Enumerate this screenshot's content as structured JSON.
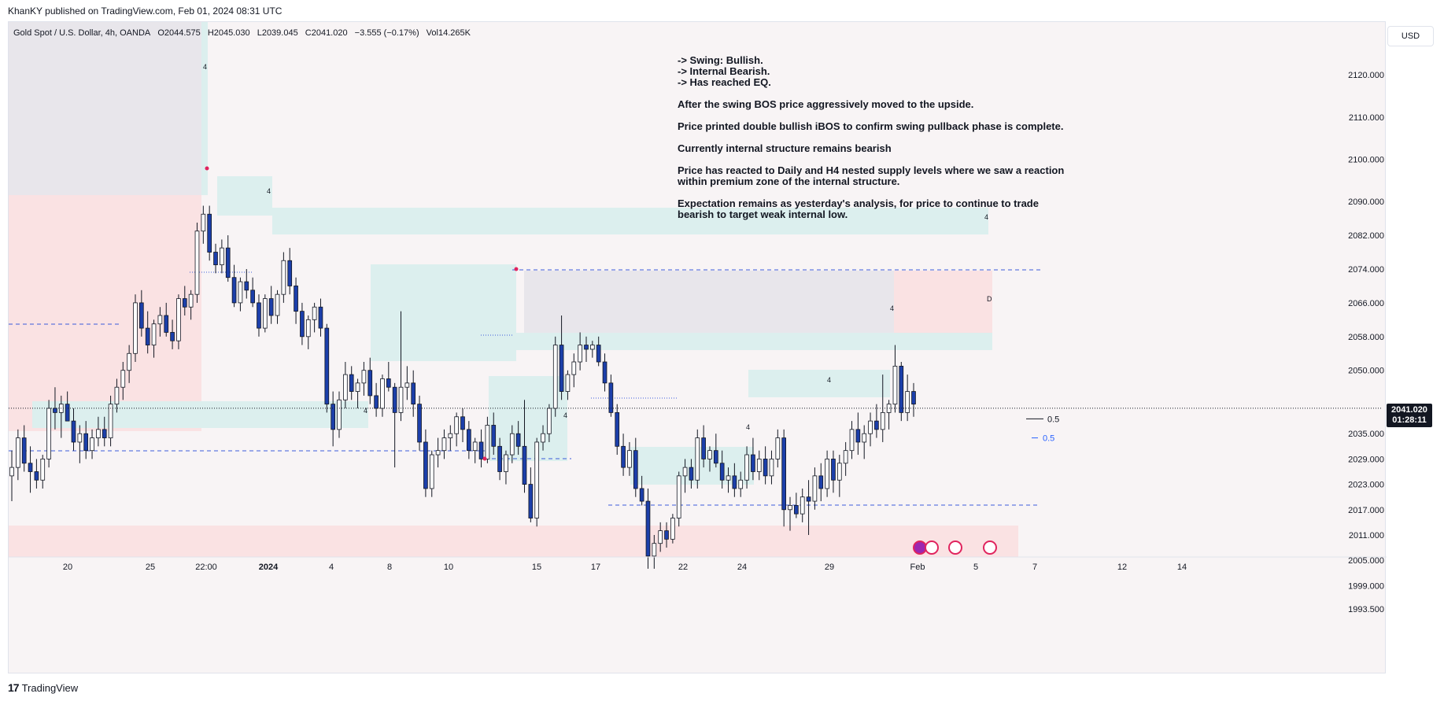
{
  "header": {
    "published": "KhanKY published on TradingView.com, Feb 01, 2024 08:31 UTC"
  },
  "symbol": {
    "name": "Gold Spot / U.S. Dollar, 4h, OANDA",
    "open": "O2044.575",
    "high": "H2045.030",
    "low": "L2039.045",
    "close": "C2041.020",
    "change": "−3.555 (−0.17%)",
    "volume": "Vol14.265K"
  },
  "currency_button": "USD",
  "notes": {
    "bullets": [
      "-> Swing: Bullish.",
      "-> Internal Bearish.",
      "-> Has reached EQ."
    ],
    "paragraphs": [
      "After the swing BOS price aggressively moved to the upside.",
      "Price printed double bullish iBOS to confirm swing pullback phase is complete.",
      "Currently internal structure remains bearish",
      "Price has reacted to Daily and H4 nested supply levels where we saw a reaction\nwithin premium zone of the internal structure.",
      "Expectation remains as yesterday's analysis, for price to continue to trade\nbearish to target weak internal low."
    ]
  },
  "price_badge": {
    "price": "2041.020",
    "countdown": "01:28:11"
  },
  "footer": {
    "brand": "TradingView",
    "mark": "17"
  },
  "colors": {
    "bull": "#ffffff",
    "bear": "#1c3faa",
    "wick": "#131722",
    "demand_zone": "#dcefee",
    "supply_zone": "#fae2e3",
    "gray_zone": "#e8e6eb",
    "dashed_line": "#3b5bdb",
    "accent_blue": "#2962ff",
    "pivot_red": "#e0245e"
  },
  "chart_data": {
    "type": "candlestick",
    "symbol": "XAUUSD",
    "timeframe": "4h",
    "ylim": [
      1989,
      2126
    ],
    "y_ticks": [
      "2120.000",
      "2110.000",
      "2100.000",
      "2090.000",
      "2082.000",
      "2074.000",
      "2066.000",
      "2058.000",
      "2050.000",
      "2035.000",
      "2029.000",
      "2023.000",
      "2017.000",
      "2011.000",
      "2005.000",
      "1999.000",
      "1993.500"
    ],
    "x_ticks": [
      "20",
      "25",
      "22:00",
      "2024",
      "4",
      "8",
      "10",
      "15",
      "17",
      "22",
      "24",
      "29",
      "Feb",
      "5",
      "7",
      "12",
      "14"
    ],
    "last_price": 2041.02,
    "last_price_label": "2041.020",
    "countdown": "01:28:11",
    "equilibrium_levels": [
      {
        "label": "0.5",
        "price": 2038.5
      },
      {
        "label": "0.5",
        "price": 2034
      }
    ],
    "zone_labels": [
      "4",
      "4",
      "4",
      "4",
      "4",
      "4",
      "4",
      "4",
      "D"
    ],
    "candles": [
      {
        "o": 2025,
        "h": 2031,
        "l": 2019,
        "c": 2027
      },
      {
        "o": 2027,
        "h": 2036,
        "l": 2024,
        "c": 2034
      },
      {
        "o": 2034,
        "h": 2037,
        "l": 2026,
        "c": 2028
      },
      {
        "o": 2028,
        "h": 2032,
        "l": 2021,
        "c": 2026
      },
      {
        "o": 2026,
        "h": 2029,
        "l": 2022,
        "c": 2024
      },
      {
        "o": 2024,
        "h": 2030,
        "l": 2022,
        "c": 2029
      },
      {
        "o": 2029,
        "h": 2043,
        "l": 2027,
        "c": 2041
      },
      {
        "o": 2041,
        "h": 2046,
        "l": 2036,
        "c": 2040
      },
      {
        "o": 2040,
        "h": 2044,
        "l": 2034,
        "c": 2042
      },
      {
        "o": 2042,
        "h": 2045,
        "l": 2038,
        "c": 2038
      },
      {
        "o": 2038,
        "h": 2041,
        "l": 2031,
        "c": 2033
      },
      {
        "o": 2033,
        "h": 2037,
        "l": 2028,
        "c": 2035
      },
      {
        "o": 2035,
        "h": 2038,
        "l": 2029,
        "c": 2031
      },
      {
        "o": 2031,
        "h": 2036,
        "l": 2029,
        "c": 2034
      },
      {
        "o": 2034,
        "h": 2039,
        "l": 2032,
        "c": 2036
      },
      {
        "o": 2036,
        "h": 2039,
        "l": 2032,
        "c": 2034
      },
      {
        "o": 2034,
        "h": 2044,
        "l": 2032,
        "c": 2042
      },
      {
        "o": 2042,
        "h": 2048,
        "l": 2040,
        "c": 2046
      },
      {
        "o": 2046,
        "h": 2052,
        "l": 2043,
        "c": 2050
      },
      {
        "o": 2050,
        "h": 2056,
        "l": 2047,
        "c": 2054
      },
      {
        "o": 2054,
        "h": 2068,
        "l": 2052,
        "c": 2066
      },
      {
        "o": 2066,
        "h": 2069,
        "l": 2058,
        "c": 2060
      },
      {
        "o": 2060,
        "h": 2064,
        "l": 2054,
        "c": 2056
      },
      {
        "o": 2056,
        "h": 2062,
        "l": 2053,
        "c": 2061
      },
      {
        "o": 2061,
        "h": 2065,
        "l": 2058,
        "c": 2063
      },
      {
        "o": 2063,
        "h": 2066,
        "l": 2058,
        "c": 2059
      },
      {
        "o": 2059,
        "h": 2062,
        "l": 2055,
        "c": 2057
      },
      {
        "o": 2057,
        "h": 2068,
        "l": 2055,
        "c": 2067
      },
      {
        "o": 2067,
        "h": 2070,
        "l": 2063,
        "c": 2065
      },
      {
        "o": 2065,
        "h": 2069,
        "l": 2062,
        "c": 2068
      },
      {
        "o": 2068,
        "h": 2085,
        "l": 2066,
        "c": 2083
      },
      {
        "o": 2083,
        "h": 2089,
        "l": 2080,
        "c": 2087
      },
      {
        "o": 2087,
        "h": 2089,
        "l": 2076,
        "c": 2078
      },
      {
        "o": 2078,
        "h": 2080,
        "l": 2073,
        "c": 2075
      },
      {
        "o": 2075,
        "h": 2081,
        "l": 2073,
        "c": 2079
      },
      {
        "o": 2079,
        "h": 2082,
        "l": 2071,
        "c": 2072
      },
      {
        "o": 2072,
        "h": 2075,
        "l": 2065,
        "c": 2066
      },
      {
        "o": 2066,
        "h": 2072,
        "l": 2064,
        "c": 2071
      },
      {
        "o": 2071,
        "h": 2074,
        "l": 2067,
        "c": 2069
      },
      {
        "o": 2069,
        "h": 2072,
        "l": 2065,
        "c": 2066
      },
      {
        "o": 2066,
        "h": 2068,
        "l": 2058,
        "c": 2060
      },
      {
        "o": 2060,
        "h": 2068,
        "l": 2059,
        "c": 2067
      },
      {
        "o": 2067,
        "h": 2070,
        "l": 2061,
        "c": 2063
      },
      {
        "o": 2063,
        "h": 2069,
        "l": 2061,
        "c": 2068
      },
      {
        "o": 2068,
        "h": 2078,
        "l": 2066,
        "c": 2076
      },
      {
        "o": 2076,
        "h": 2079,
        "l": 2068,
        "c": 2070
      },
      {
        "o": 2070,
        "h": 2072,
        "l": 2061,
        "c": 2064
      },
      {
        "o": 2064,
        "h": 2066,
        "l": 2056,
        "c": 2058
      },
      {
        "o": 2058,
        "h": 2063,
        "l": 2055,
        "c": 2062
      },
      {
        "o": 2062,
        "h": 2066,
        "l": 2059,
        "c": 2065
      },
      {
        "o": 2065,
        "h": 2067,
        "l": 2058,
        "c": 2060
      },
      {
        "o": 2060,
        "h": 2061,
        "l": 2040,
        "c": 2042
      },
      {
        "o": 2042,
        "h": 2045,
        "l": 2032,
        "c": 2036
      },
      {
        "o": 2036,
        "h": 2045,
        "l": 2034,
        "c": 2043
      },
      {
        "o": 2043,
        "h": 2052,
        "l": 2041,
        "c": 2049
      },
      {
        "o": 2049,
        "h": 2051,
        "l": 2043,
        "c": 2045
      },
      {
        "o": 2045,
        "h": 2048,
        "l": 2041,
        "c": 2047
      },
      {
        "o": 2047,
        "h": 2052,
        "l": 2044,
        "c": 2050
      },
      {
        "o": 2050,
        "h": 2053,
        "l": 2042,
        "c": 2044
      },
      {
        "o": 2044,
        "h": 2047,
        "l": 2039,
        "c": 2041
      },
      {
        "o": 2041,
        "h": 2049,
        "l": 2039,
        "c": 2048
      },
      {
        "o": 2048,
        "h": 2052,
        "l": 2045,
        "c": 2046
      },
      {
        "o": 2046,
        "h": 2047,
        "l": 2027,
        "c": 2040
      },
      {
        "o": 2040,
        "h": 2064,
        "l": 2038,
        "c": 2046
      },
      {
        "o": 2046,
        "h": 2051,
        "l": 2043,
        "c": 2047
      },
      {
        "o": 2047,
        "h": 2050,
        "l": 2039,
        "c": 2042
      },
      {
        "o": 2042,
        "h": 2044,
        "l": 2031,
        "c": 2033
      },
      {
        "o": 2033,
        "h": 2036,
        "l": 2020,
        "c": 2022
      },
      {
        "o": 2022,
        "h": 2031,
        "l": 2020,
        "c": 2030
      },
      {
        "o": 2030,
        "h": 2034,
        "l": 2027,
        "c": 2031
      },
      {
        "o": 2031,
        "h": 2036,
        "l": 2029,
        "c": 2034
      },
      {
        "o": 2034,
        "h": 2037,
        "l": 2031,
        "c": 2035
      },
      {
        "o": 2035,
        "h": 2040,
        "l": 2032,
        "c": 2039
      },
      {
        "o": 2039,
        "h": 2041,
        "l": 2033,
        "c": 2036
      },
      {
        "o": 2036,
        "h": 2038,
        "l": 2029,
        "c": 2031
      },
      {
        "o": 2031,
        "h": 2034,
        "l": 2028,
        "c": 2033
      },
      {
        "o": 2033,
        "h": 2036,
        "l": 2027,
        "c": 2029
      },
      {
        "o": 2029,
        "h": 2039,
        "l": 2028,
        "c": 2037
      },
      {
        "o": 2037,
        "h": 2040,
        "l": 2030,
        "c": 2032
      },
      {
        "o": 2032,
        "h": 2034,
        "l": 2024,
        "c": 2026
      },
      {
        "o": 2026,
        "h": 2031,
        "l": 2023,
        "c": 2030
      },
      {
        "o": 2030,
        "h": 2037,
        "l": 2028,
        "c": 2035
      },
      {
        "o": 2035,
        "h": 2038,
        "l": 2030,
        "c": 2032
      },
      {
        "o": 2032,
        "h": 2043,
        "l": 2021,
        "c": 2023
      },
      {
        "o": 2023,
        "h": 2027,
        "l": 2014,
        "c": 2015
      },
      {
        "o": 2015,
        "h": 2034,
        "l": 2013,
        "c": 2033
      },
      {
        "o": 2033,
        "h": 2037,
        "l": 2031,
        "c": 2035
      },
      {
        "o": 2035,
        "h": 2042,
        "l": 2033,
        "c": 2041
      },
      {
        "o": 2041,
        "h": 2058,
        "l": 2039,
        "c": 2056
      },
      {
        "o": 2056,
        "h": 2063,
        "l": 2043,
        "c": 2045
      },
      {
        "o": 2045,
        "h": 2050,
        "l": 2043,
        "c": 2049
      },
      {
        "o": 2049,
        "h": 2054,
        "l": 2046,
        "c": 2052
      },
      {
        "o": 2052,
        "h": 2059,
        "l": 2050,
        "c": 2056
      },
      {
        "o": 2056,
        "h": 2058,
        "l": 2052,
        "c": 2055
      },
      {
        "o": 2055,
        "h": 2057,
        "l": 2053,
        "c": 2056
      },
      {
        "o": 2056,
        "h": 2058,
        "l": 2051,
        "c": 2052
      },
      {
        "o": 2052,
        "h": 2054,
        "l": 2045,
        "c": 2047
      },
      {
        "o": 2047,
        "h": 2049,
        "l": 2039,
        "c": 2040
      },
      {
        "o": 2040,
        "h": 2042,
        "l": 2030,
        "c": 2032
      },
      {
        "o": 2032,
        "h": 2035,
        "l": 2025,
        "c": 2027
      },
      {
        "o": 2027,
        "h": 2033,
        "l": 2025,
        "c": 2031
      },
      {
        "o": 2031,
        "h": 2034,
        "l": 2020,
        "c": 2022
      },
      {
        "o": 2022,
        "h": 2025,
        "l": 2018,
        "c": 2019
      },
      {
        "o": 2019,
        "h": 2022,
        "l": 2003,
        "c": 2006
      },
      {
        "o": 2006,
        "h": 2011,
        "l": 2003,
        "c": 2009
      },
      {
        "o": 2009,
        "h": 2014,
        "l": 2007,
        "c": 2012
      },
      {
        "o": 2012,
        "h": 2014,
        "l": 2008,
        "c": 2010
      },
      {
        "o": 2010,
        "h": 2016,
        "l": 2009,
        "c": 2015
      },
      {
        "o": 2015,
        "h": 2026,
        "l": 2013,
        "c": 2025
      },
      {
        "o": 2025,
        "h": 2029,
        "l": 2021,
        "c": 2027
      },
      {
        "o": 2027,
        "h": 2029,
        "l": 2022,
        "c": 2024
      },
      {
        "o": 2024,
        "h": 2036,
        "l": 2022,
        "c": 2034
      },
      {
        "o": 2034,
        "h": 2037,
        "l": 2027,
        "c": 2029
      },
      {
        "o": 2029,
        "h": 2032,
        "l": 2026,
        "c": 2031
      },
      {
        "o": 2031,
        "h": 2035,
        "l": 2027,
        "c": 2028
      },
      {
        "o": 2028,
        "h": 2031,
        "l": 2022,
        "c": 2024
      },
      {
        "o": 2024,
        "h": 2027,
        "l": 2021,
        "c": 2025
      },
      {
        "o": 2025,
        "h": 2028,
        "l": 2020,
        "c": 2022
      },
      {
        "o": 2022,
        "h": 2026,
        "l": 2020,
        "c": 2024
      },
      {
        "o": 2024,
        "h": 2032,
        "l": 2022,
        "c": 2030
      },
      {
        "o": 2030,
        "h": 2034,
        "l": 2024,
        "c": 2026
      },
      {
        "o": 2026,
        "h": 2031,
        "l": 2024,
        "c": 2029
      },
      {
        "o": 2029,
        "h": 2032,
        "l": 2023,
        "c": 2025
      },
      {
        "o": 2025,
        "h": 2031,
        "l": 2023,
        "c": 2029
      },
      {
        "o": 2029,
        "h": 2036,
        "l": 2027,
        "c": 2034
      },
      {
        "o": 2034,
        "h": 2036,
        "l": 2013,
        "c": 2017
      },
      {
        "o": 2017,
        "h": 2020,
        "l": 2012,
        "c": 2018
      },
      {
        "o": 2018,
        "h": 2021,
        "l": 2015,
        "c": 2016
      },
      {
        "o": 2016,
        "h": 2022,
        "l": 2014,
        "c": 2020
      },
      {
        "o": 2020,
        "h": 2024,
        "l": 2011,
        "c": 2019
      },
      {
        "o": 2019,
        "h": 2027,
        "l": 2017,
        "c": 2025
      },
      {
        "o": 2025,
        "h": 2028,
        "l": 2019,
        "c": 2022
      },
      {
        "o": 2022,
        "h": 2031,
        "l": 2020,
        "c": 2029
      },
      {
        "o": 2029,
        "h": 2031,
        "l": 2021,
        "c": 2024
      },
      {
        "o": 2024,
        "h": 2030,
        "l": 2020,
        "c": 2028
      },
      {
        "o": 2028,
        "h": 2033,
        "l": 2025,
        "c": 2031
      },
      {
        "o": 2031,
        "h": 2038,
        "l": 2029,
        "c": 2036
      },
      {
        "o": 2036,
        "h": 2040,
        "l": 2030,
        "c": 2033
      },
      {
        "o": 2033,
        "h": 2037,
        "l": 2029,
        "c": 2035
      },
      {
        "o": 2035,
        "h": 2040,
        "l": 2032,
        "c": 2038
      },
      {
        "o": 2038,
        "h": 2042,
        "l": 2034,
        "c": 2036
      },
      {
        "o": 2036,
        "h": 2049,
        "l": 2033,
        "c": 2040
      },
      {
        "o": 2040,
        "h": 2043,
        "l": 2036,
        "c": 2042
      },
      {
        "o": 2042,
        "h": 2056,
        "l": 2040,
        "c": 2051
      },
      {
        "o": 2051,
        "h": 2052,
        "l": 2038,
        "c": 2040
      },
      {
        "o": 2040,
        "h": 2049,
        "l": 2038,
        "c": 2045
      },
      {
        "o": 2045,
        "h": 2047,
        "l": 2039,
        "c": 2042
      }
    ]
  }
}
